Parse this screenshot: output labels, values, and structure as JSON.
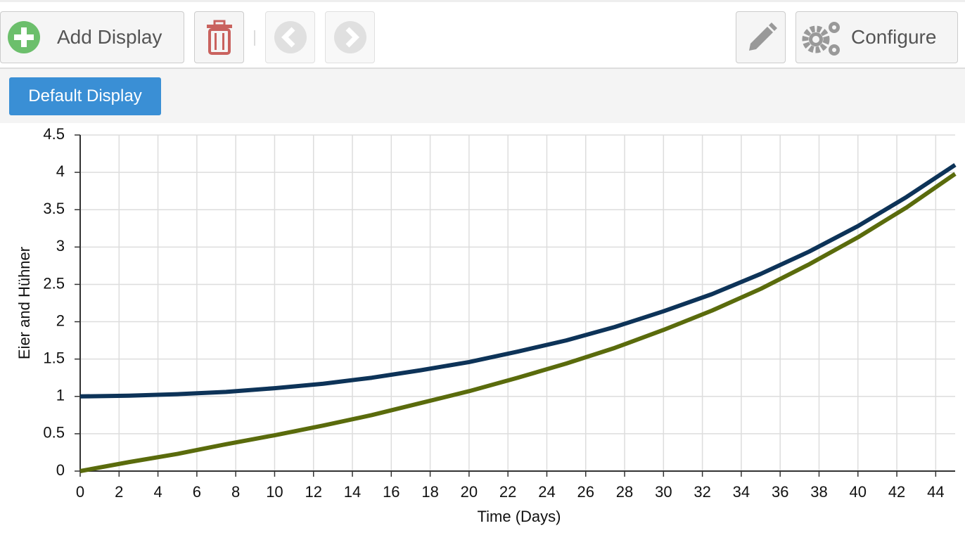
{
  "toolbar": {
    "add_button": "Add Display",
    "configure_button": "Configure"
  },
  "tabs": [
    "Default Display"
  ],
  "chart_data": {
    "type": "line",
    "xlabel": "Time (Days)",
    "ylabel": "Eier and Hühner",
    "x": [
      0,
      2.5,
      5,
      7.5,
      10,
      12.5,
      15,
      17.5,
      20,
      22.5,
      25,
      27.5,
      30,
      32.5,
      35,
      37.5,
      40,
      42.5,
      45
    ],
    "series": [
      {
        "color": "#0d3358",
        "values": [
          1,
          1.01,
          1.03,
          1.06,
          1.11,
          1.17,
          1.25,
          1.35,
          1.46,
          1.6,
          1.75,
          1.93,
          2.14,
          2.37,
          2.64,
          2.94,
          3.28,
          3.67,
          4.1
        ]
      },
      {
        "color": "#5a6b0c",
        "values": [
          0,
          0.12,
          0.23,
          0.36,
          0.48,
          0.61,
          0.75,
          0.91,
          1.07,
          1.25,
          1.44,
          1.65,
          1.89,
          2.15,
          2.44,
          2.77,
          3.13,
          3.53,
          3.98
        ]
      }
    ],
    "xlim": [
      0,
      45
    ],
    "xticks": [
      0,
      2,
      4,
      6,
      8,
      10,
      12,
      14,
      16,
      18,
      20,
      22,
      24,
      26,
      28,
      30,
      32,
      34,
      36,
      38,
      40,
      42,
      44
    ],
    "ylim": [
      0,
      4.5
    ],
    "yticks": [
      0,
      0.5,
      1,
      1.5,
      2,
      2.5,
      3,
      3.5,
      4,
      4.5
    ],
    "grid": true
  }
}
